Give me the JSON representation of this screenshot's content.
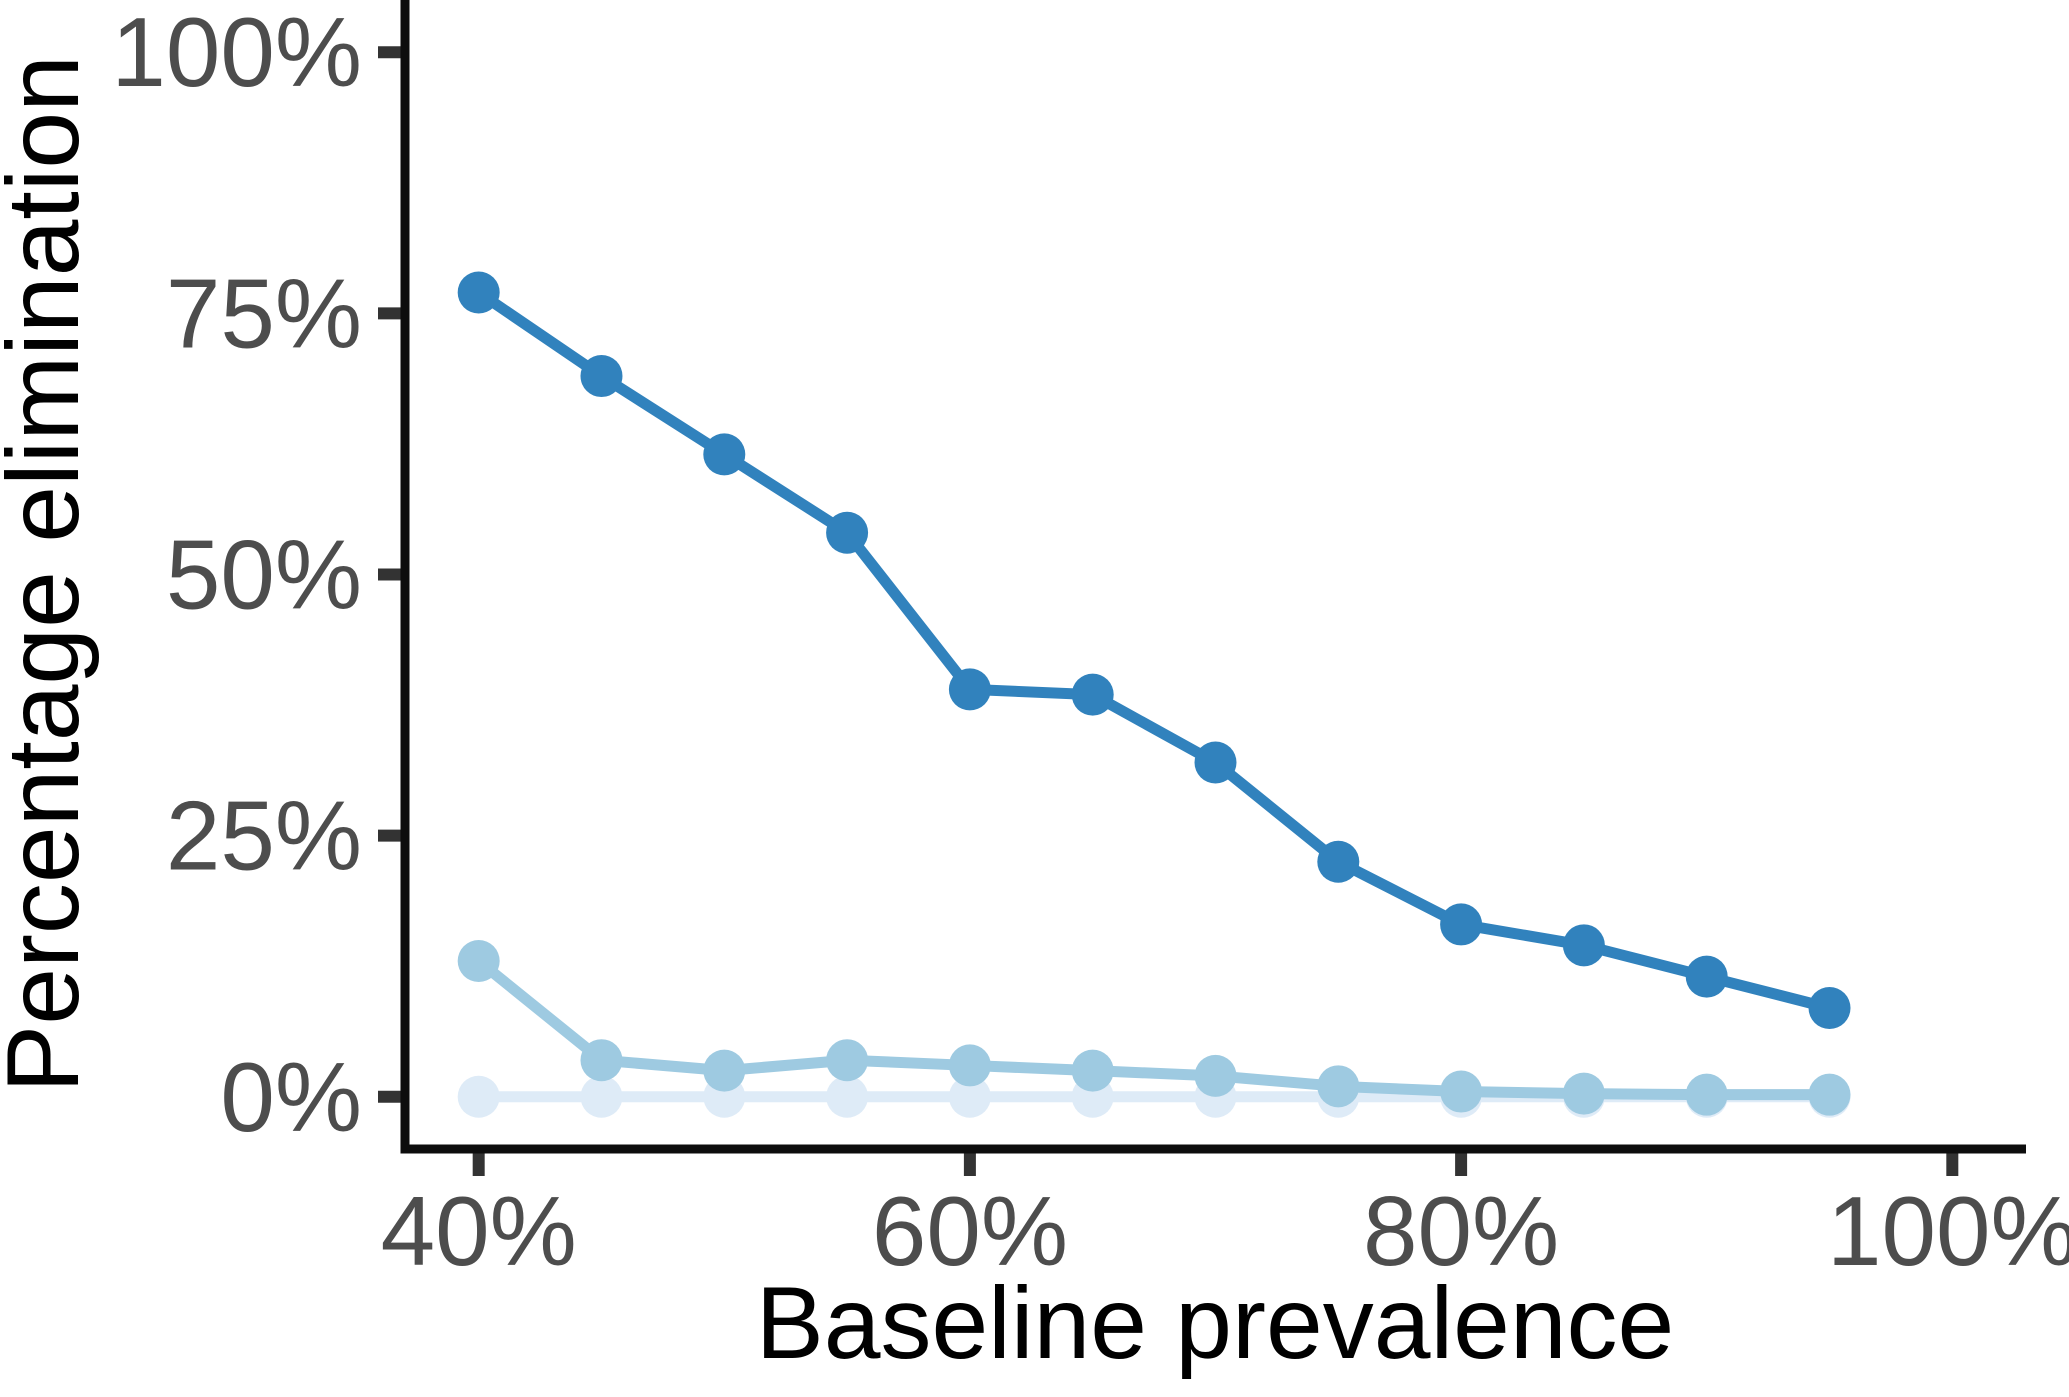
{
  "chart_data": {
    "type": "line",
    "title": "",
    "xlabel": "Baseline prevalence",
    "ylabel": "Percentage elimination",
    "x": [
      40,
      45,
      50,
      55,
      60,
      65,
      70,
      75,
      80,
      85,
      90,
      95
    ],
    "series": [
      {
        "name": "pale-blue",
        "color": "#deebf7",
        "values": [
          0,
          0,
          0,
          0,
          0,
          0,
          0,
          0,
          0,
          0,
          0,
          0
        ]
      },
      {
        "name": "medium-blue",
        "color": "#9ecae1",
        "values": [
          13,
          3.5,
          2.5,
          3.5,
          3,
          2.5,
          2,
          1,
          0.5,
          0.3,
          0.2,
          0.2
        ]
      },
      {
        "name": "dark-blue",
        "color": "#3182bd",
        "values": [
          77,
          69,
          61.5,
          54,
          39,
          38.5,
          32,
          22.5,
          16.5,
          14.5,
          11.5,
          8.5
        ]
      }
    ],
    "x_ticks": [
      {
        "value": 40,
        "label": "40%"
      },
      {
        "value": 60,
        "label": "60%"
      },
      {
        "value": 80,
        "label": "80%"
      },
      {
        "value": 100,
        "label": "100%"
      }
    ],
    "y_ticks": [
      {
        "value": 0,
        "label": "0%"
      },
      {
        "value": 25,
        "label": "25%"
      },
      {
        "value": 50,
        "label": "50%"
      },
      {
        "value": 75,
        "label": "75%"
      },
      {
        "value": 100,
        "label": "100%"
      }
    ],
    "xlim": [
      37,
      103
    ],
    "ylim": [
      -5,
      105
    ],
    "grid": false,
    "legend": "none"
  },
  "styles": {
    "background": "#ffffff",
    "axis_line_color": "#0d0d0d",
    "tick_mark_color": "#333333",
    "tick_label_color": "#4d4d4d",
    "axis_title_color": "#000000"
  }
}
